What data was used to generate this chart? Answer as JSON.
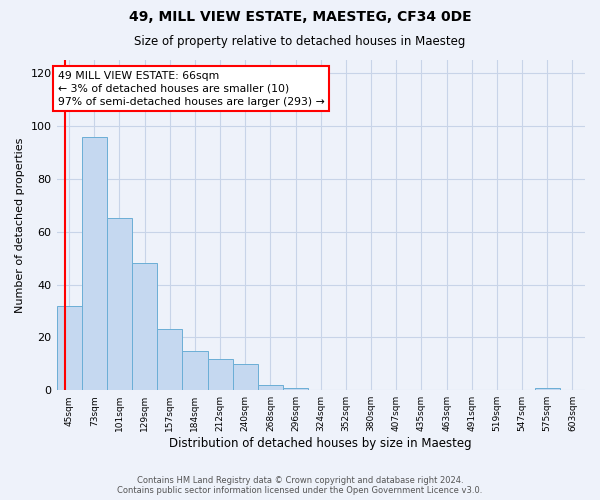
{
  "title": "49, MILL VIEW ESTATE, MAESTEG, CF34 0DE",
  "subtitle": "Size of property relative to detached houses in Maesteg",
  "xlabel": "Distribution of detached houses by size in Maesteg",
  "ylabel": "Number of detached properties",
  "bin_labels": [
    "45sqm",
    "73sqm",
    "101sqm",
    "129sqm",
    "157sqm",
    "184sqm",
    "212sqm",
    "240sqm",
    "268sqm",
    "296sqm",
    "324sqm",
    "352sqm",
    "380sqm",
    "407sqm",
    "435sqm",
    "463sqm",
    "491sqm",
    "519sqm",
    "547sqm",
    "575sqm",
    "603sqm"
  ],
  "bar_heights": [
    32,
    96,
    65,
    48,
    23,
    15,
    12,
    10,
    2,
    1,
    0,
    0,
    0,
    0,
    0,
    0,
    0,
    0,
    0,
    1,
    0
  ],
  "bar_color": "#c5d8f0",
  "bar_edge_color": "#6baed6",
  "annotation_text_line1": "49 MILL VIEW ESTATE: 66sqm",
  "annotation_text_line2": "← 3% of detached houses are smaller (10)",
  "annotation_text_line3": "97% of semi-detached houses are larger (293) →",
  "annotation_box_color": "white",
  "annotation_box_edge_color": "red",
  "vline_color": "red",
  "vline_x": -0.15,
  "ylim": [
    0,
    125
  ],
  "yticks": [
    0,
    20,
    40,
    60,
    80,
    100,
    120
  ],
  "footer_line1": "Contains HM Land Registry data © Crown copyright and database right 2024.",
  "footer_line2": "Contains public sector information licensed under the Open Government Licence v3.0.",
  "background_color": "#eef2fa",
  "grid_color": "#c8d4e8"
}
